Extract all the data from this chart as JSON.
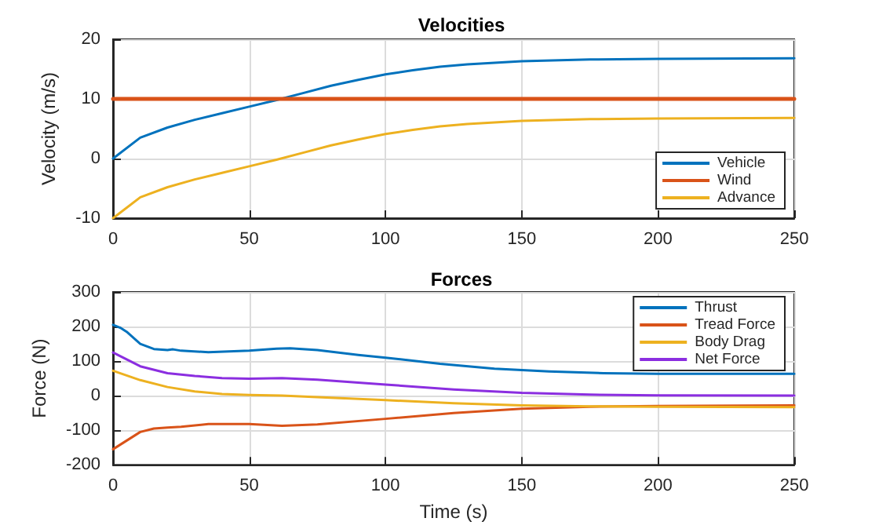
{
  "chart_data": [
    {
      "type": "line",
      "title": "Velocities",
      "ylabel": "Velocity (m/s)",
      "xlim": [
        0,
        250
      ],
      "xticks": [
        0,
        50,
        100,
        150,
        200,
        250
      ],
      "ylim": [
        -10,
        20
      ],
      "yticks": [
        -10,
        0,
        10,
        20
      ],
      "grid": true,
      "legend": "bottom right",
      "marker": "none",
      "line_style": "solid",
      "series": [
        {
          "name": "Vehicle",
          "color": "#0072bd",
          "x": [
            0,
            10,
            20,
            30,
            40,
            50,
            60,
            70,
            80,
            90,
            100,
            110,
            120,
            130,
            150,
            175,
            200,
            250
          ],
          "values": [
            0,
            3.5,
            5.2,
            6.5,
            7.6,
            8.7,
            9.8,
            11,
            12.2,
            13.2,
            14.1,
            14.8,
            15.4,
            15.8,
            16.3,
            16.6,
            16.7,
            16.8
          ]
        },
        {
          "name": "Wind",
          "color": "#d95319",
          "x": [
            0,
            250
          ],
          "values": [
            10,
            10
          ]
        },
        {
          "name": "Advance",
          "color": "#edb120",
          "x": [
            0,
            10,
            20,
            30,
            40,
            50,
            60,
            70,
            80,
            90,
            100,
            110,
            120,
            130,
            150,
            175,
            200,
            250
          ],
          "values": [
            -10,
            -6.5,
            -4.8,
            -3.5,
            -2.4,
            -1.3,
            -0.2,
            1,
            2.2,
            3.2,
            4.1,
            4.8,
            5.4,
            5.8,
            6.3,
            6.6,
            6.7,
            6.8
          ]
        }
      ]
    },
    {
      "type": "line",
      "title": "Forces",
      "xlabel": "Time (s)",
      "ylabel": "Force (N)",
      "xlim": [
        0,
        250
      ],
      "xticks": [
        0,
        50,
        100,
        150,
        200,
        250
      ],
      "ylim": [
        -200,
        300
      ],
      "yticks": [
        -200,
        -100,
        0,
        100,
        200,
        300
      ],
      "grid": true,
      "legend": "top right",
      "marker": "none",
      "line_style": "solid",
      "series": [
        {
          "name": "Thrust",
          "color": "#0072bd",
          "x": [
            0,
            3,
            5,
            10,
            15,
            20,
            22,
            25,
            35,
            50,
            60,
            65,
            75,
            90,
            100,
            120,
            140,
            160,
            180,
            200,
            250
          ],
          "values": [
            205,
            195,
            185,
            150,
            135,
            132,
            134,
            130,
            126,
            130,
            136,
            137,
            132,
            118,
            110,
            92,
            78,
            70,
            65,
            63,
            63
          ]
        },
        {
          "name": "Tread Force",
          "color": "#d95319",
          "x": [
            0,
            5,
            10,
            15,
            20,
            25,
            35,
            50,
            62,
            75,
            100,
            125,
            150,
            175,
            200,
            250
          ],
          "values": [
            -155,
            -130,
            -105,
            -95,
            -92,
            -90,
            -82,
            -82,
            -87,
            -83,
            -67,
            -50,
            -38,
            -32,
            -30,
            -28
          ]
        },
        {
          "name": "Body Drag",
          "color": "#edb120",
          "x": [
            0,
            10,
            20,
            30,
            40,
            50,
            62,
            75,
            100,
            125,
            150,
            175,
            200,
            250
          ],
          "values": [
            72,
            45,
            25,
            12,
            5,
            2,
            0,
            -4,
            -13,
            -22,
            -28,
            -31,
            -32,
            -33
          ]
        },
        {
          "name": "Net Force",
          "color": "#8b2ee0",
          "x": [
            0,
            10,
            20,
            30,
            40,
            50,
            62,
            75,
            100,
            125,
            150,
            175,
            200,
            250
          ],
          "values": [
            125,
            85,
            65,
            57,
            51,
            49,
            51,
            46,
            32,
            18,
            8,
            3,
            1,
            0
          ]
        }
      ]
    }
  ]
}
